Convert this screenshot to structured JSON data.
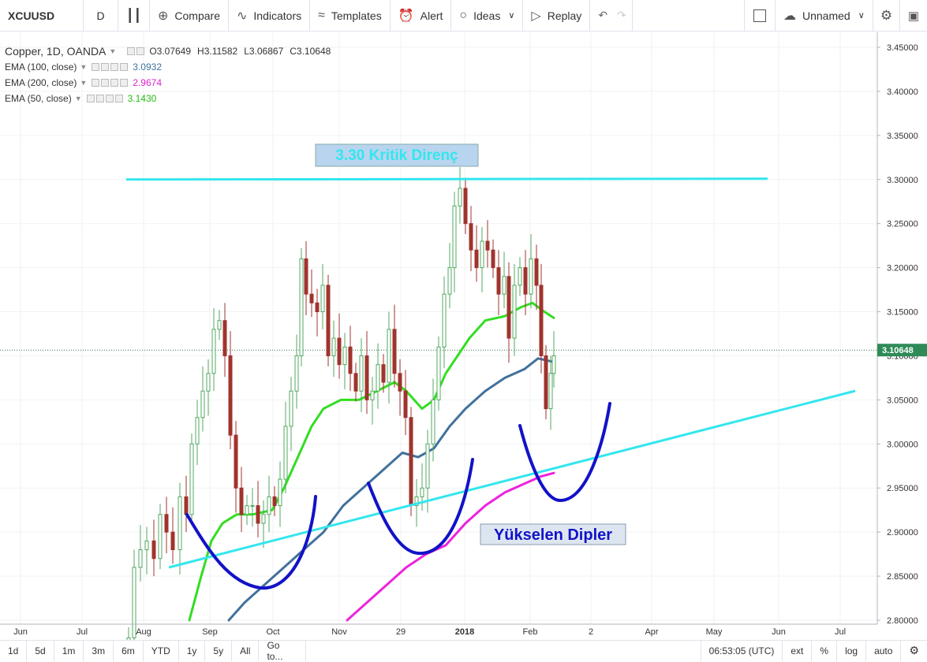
{
  "toolbar": {
    "symbol": "XCUUSD",
    "interval": "D",
    "compare": "Compare",
    "indicators": "Indicators",
    "templates": "Templates",
    "alert": "Alert",
    "ideas": "Ideas",
    "replay": "Replay",
    "layout_name": "Unnamed"
  },
  "legend": {
    "title": "Copper, 1D, OANDA",
    "open": "O3.07649",
    "high": "H3.11582",
    "low": "L3.06867",
    "close": "C3.10648",
    "ema100_label": "EMA (100, close)",
    "ema100_value": "3.0932",
    "ema200_label": "EMA (200, close)",
    "ema200_value": "2.9674",
    "ema50_label": "EMA (50, close)",
    "ema50_value": "3.1430"
  },
  "colors": {
    "ema50": "#33dd22",
    "ema100": "#41719c",
    "ema200": "#ee22dd",
    "trendline": "#33e6ee",
    "annotation": "#1212c8",
    "candle_up": "#53a862",
    "candle_down": "#a0332d"
  },
  "chart_data": {
    "type": "candlestick",
    "price_tag": "3.10648",
    "current_price": 3.10648,
    "y_ticks": [
      "3.45000",
      "3.40000",
      "3.35000",
      "3.30000",
      "3.25000",
      "3.20000",
      "3.15000",
      "3.10000",
      "3.05000",
      "3.00000",
      "2.95000",
      "2.90000",
      "2.85000",
      "2.80000"
    ],
    "ylim": [
      2.8,
      3.45
    ],
    "x_ticks": [
      "Jun",
      "Jul",
      "Aug",
      "Sep",
      "Oct",
      "Nov",
      "29",
      "2018",
      "Feb",
      "2",
      "Apr",
      "May",
      "Jun",
      "Jul"
    ],
    "annotations": {
      "resistance_label": "3.30 Kritik Direnç",
      "resistance_level": 3.3,
      "rising_lows_label": "Yükselen Dipler"
    }
  },
  "bottom_bar": {
    "ranges": [
      "1d",
      "5d",
      "1m",
      "3m",
      "6m",
      "YTD",
      "1y",
      "5y",
      "All"
    ],
    "goto": "Go to...",
    "clock": "06:53:05 (UTC)",
    "ext": "ext",
    "percent": "%",
    "log": "log",
    "auto": "auto"
  }
}
